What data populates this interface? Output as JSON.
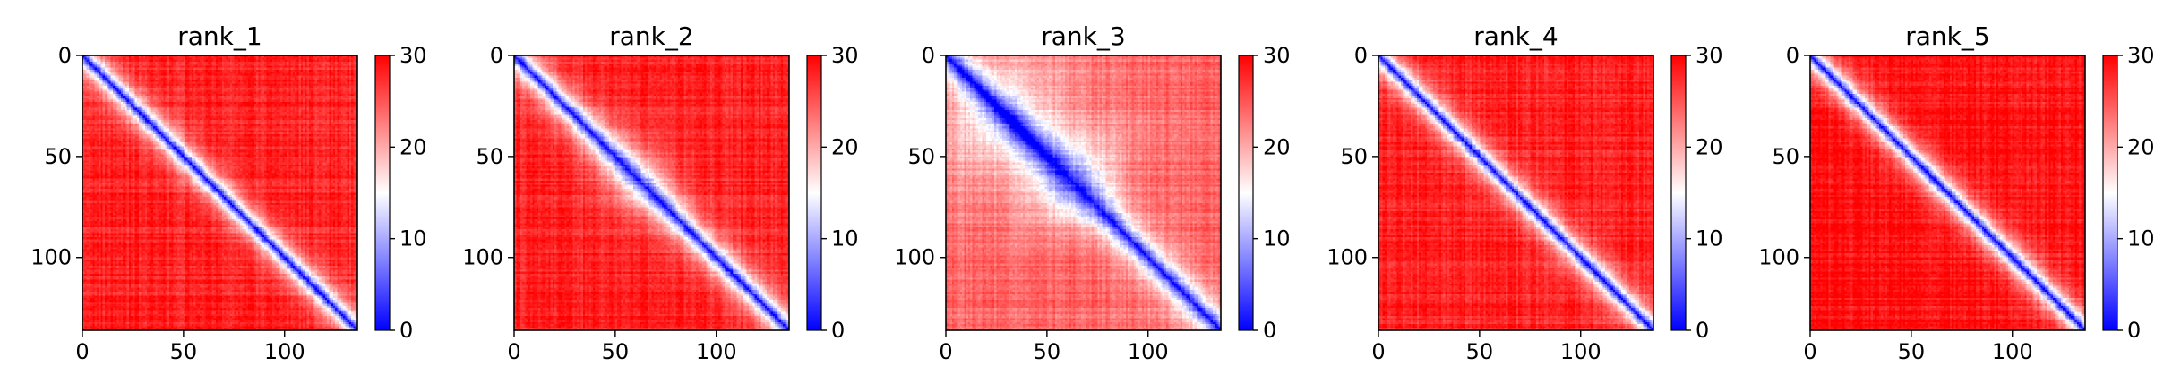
{
  "figure": {
    "colormap": {
      "low": "#0000ff",
      "mid": "#ffffff",
      "high": "#ff0000"
    }
  },
  "chart_data": [
    {
      "type": "heatmap",
      "title": "rank_1",
      "size": 136,
      "xlim": [
        0,
        136
      ],
      "ylim": [
        136,
        0
      ],
      "x_ticks": [
        0,
        50,
        100
      ],
      "y_ticks": [
        0,
        50,
        100
      ],
      "colorbar_range": [
        0,
        30
      ],
      "colorbar_ticks": [
        0,
        10,
        20,
        30
      ],
      "diagonal_band": "narrow blue band along the diagonal; values rise to ~30 (red) away from it",
      "off_diagonal_level": 28
    },
    {
      "type": "heatmap",
      "title": "rank_2",
      "size": 136,
      "xlim": [
        0,
        136
      ],
      "ylim": [
        136,
        0
      ],
      "x_ticks": [
        0,
        50,
        100
      ],
      "y_ticks": [
        0,
        50,
        100
      ],
      "colorbar_range": [
        0,
        30
      ],
      "colorbar_ticks": [
        0,
        10,
        20,
        30
      ],
      "diagonal_band": "blue diagonal with whiter region near the middle",
      "off_diagonal_level": 28
    },
    {
      "type": "heatmap",
      "title": "rank_3",
      "size": 136,
      "xlim": [
        0,
        136
      ],
      "ylim": [
        136,
        0
      ],
      "x_ticks": [
        0,
        50,
        100
      ],
      "y_ticks": [
        0,
        50,
        100
      ],
      "colorbar_range": [
        0,
        30
      ],
      "colorbar_ticks": [
        0,
        10,
        20,
        30
      ],
      "diagonal_band": "broader blue/white structure; blob around index 60",
      "off_diagonal_level": 24
    },
    {
      "type": "heatmap",
      "title": "rank_4",
      "size": 136,
      "xlim": [
        0,
        136
      ],
      "ylim": [
        136,
        0
      ],
      "x_ticks": [
        0,
        50,
        100
      ],
      "y_ticks": [
        0,
        50,
        100
      ],
      "colorbar_range": [
        0,
        30
      ],
      "colorbar_ticks": [
        0,
        10,
        20,
        30
      ],
      "diagonal_band": "narrow blue band along the diagonal",
      "off_diagonal_level": 28
    },
    {
      "type": "heatmap",
      "title": "rank_5",
      "size": 136,
      "xlim": [
        0,
        136
      ],
      "ylim": [
        136,
        0
      ],
      "x_ticks": [
        0,
        50,
        100
      ],
      "y_ticks": [
        0,
        50,
        100
      ],
      "colorbar_range": [
        0,
        30
      ],
      "colorbar_ticks": [
        0,
        10,
        20,
        30
      ],
      "diagonal_band": "narrow blue band along the diagonal",
      "off_diagonal_level": 29
    }
  ]
}
